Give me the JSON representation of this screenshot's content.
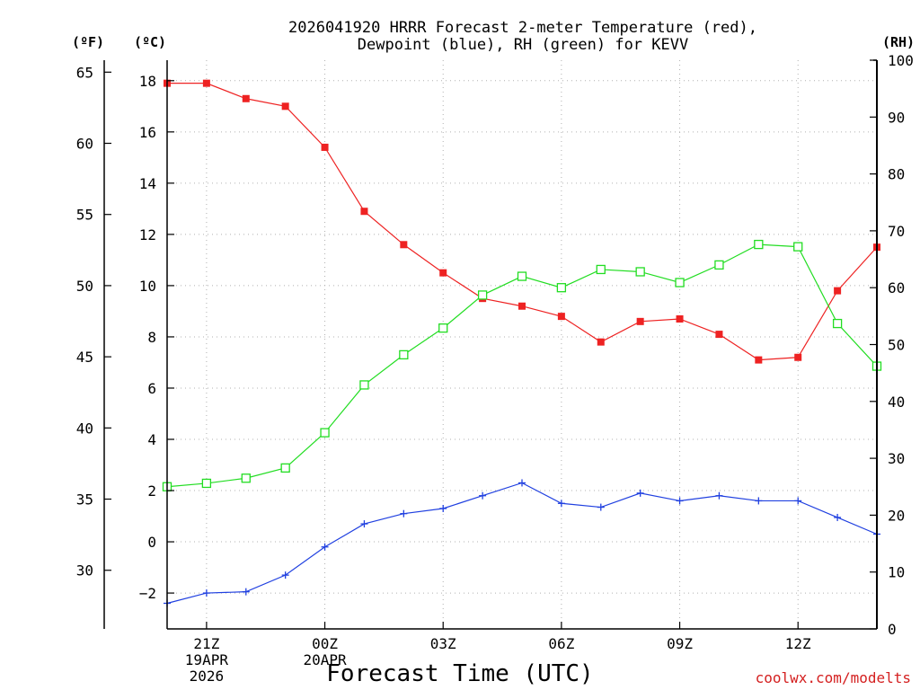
{
  "chart_data": {
    "type": "line",
    "title_line1": "2026041920 HRRR Forecast 2-meter Temperature (red),",
    "title_line2": "Dewpoint (blue), RH (green) for KEVV",
    "xlabel": "Forecast Time (UTC)",
    "credit": "coolwx.com/modelts",
    "units": {
      "fahrenheit": "(ºF)",
      "celsius": "(ºC)",
      "rh": "(RH)"
    },
    "x": [
      20,
      21,
      22,
      23,
      24,
      25,
      26,
      27,
      28,
      29,
      30,
      31,
      32,
      33,
      34,
      35,
      36,
      37,
      38
    ],
    "xlim": [
      20,
      38
    ],
    "celsius_axis": {
      "ylim": [
        -3.4,
        18.8
      ],
      "ticks": [
        -2,
        0,
        2,
        4,
        6,
        8,
        10,
        12,
        14,
        16,
        18
      ],
      "labels": [
        "−2",
        "0",
        "2",
        "4",
        "6",
        "8",
        "10",
        "12",
        "14",
        "16",
        "18"
      ]
    },
    "fahrenheit_axis": {
      "ticks": [
        30,
        35,
        40,
        45,
        50,
        55,
        60,
        65
      ],
      "labels": [
        "30",
        "35",
        "40",
        "45",
        "50",
        "55",
        "60",
        "65"
      ]
    },
    "rh_axis": {
      "ylim": [
        0,
        100
      ],
      "ticks": [
        0,
        10,
        20,
        30,
        40,
        50,
        60,
        70,
        80,
        90,
        100
      ],
      "labels": [
        "0",
        "10",
        "20",
        "30",
        "40",
        "50",
        "60",
        "70",
        "80",
        "90",
        "100"
      ]
    },
    "x_ticks": [
      {
        "x": 21,
        "lines": [
          "21Z",
          "19APR",
          "2026"
        ]
      },
      {
        "x": 24,
        "lines": [
          "00Z",
          "20APR"
        ]
      },
      {
        "x": 27,
        "lines": [
          "03Z"
        ]
      },
      {
        "x": 30,
        "lines": [
          "06Z"
        ]
      },
      {
        "x": 33,
        "lines": [
          "09Z"
        ]
      },
      {
        "x": 36,
        "lines": [
          "12Z"
        ]
      }
    ],
    "series": [
      {
        "name": "Temperature",
        "axis": "celsius",
        "color": "#ee2222",
        "marker": "filled-square",
        "values": [
          17.9,
          17.9,
          17.3,
          17.0,
          15.4,
          12.9,
          11.6,
          10.5,
          9.5,
          9.2,
          8.8,
          7.8,
          8.6,
          8.7,
          8.1,
          7.1,
          7.2,
          9.8,
          11.5
        ]
      },
      {
        "name": "Dewpoint",
        "axis": "celsius",
        "color": "#2040e0",
        "marker": "plus",
        "values": [
          -2.4,
          -2.0,
          -1.95,
          -1.3,
          -0.2,
          0.7,
          1.1,
          1.3,
          1.8,
          2.3,
          1.5,
          1.35,
          1.9,
          1.6,
          1.8,
          1.6,
          1.6,
          0.95,
          0.3
        ]
      },
      {
        "name": "RH",
        "axis": "rh",
        "color": "#22dd22",
        "marker": "open-square",
        "values": [
          25,
          25.6,
          26.5,
          28.3,
          34.5,
          42.9,
          48.2,
          52.9,
          58.7,
          62.0,
          60.0,
          63.2,
          62.8,
          60.9,
          64.0,
          67.6,
          67.2,
          53.7,
          46.2
        ]
      }
    ]
  }
}
